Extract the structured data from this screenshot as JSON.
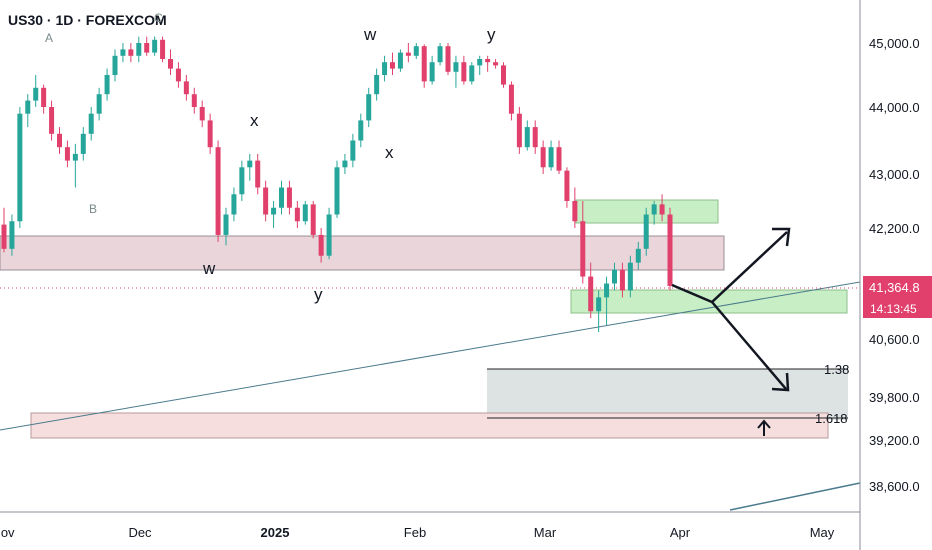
{
  "header": {
    "symbol_title": "US30 · 1D · FOREXCOM"
  },
  "chart_data": {
    "type": "candlestick",
    "instrument": "US30",
    "timeframe": "1D",
    "source": "FOREXCOM",
    "price_axis": {
      "ticks": [
        "45,000.0",
        "44,000.0",
        "43,000.0",
        "42,200.0",
        "40,600.0",
        "39,800.0",
        "39,200.0",
        "38,600.0"
      ],
      "tick_values": [
        45000,
        44000,
        43000,
        42200,
        40600,
        39800,
        39200,
        38600
      ],
      "current_price_label": "41,364.8",
      "countdown_label": "14:13:45",
      "current_price": 41364.8
    },
    "time_axis": {
      "ticks": [
        "Nov",
        "Dec",
        "2025",
        "Feb",
        "Mar",
        "Apr",
        "May"
      ]
    },
    "candles_ohlc": [
      [
        42250,
        42500,
        41850,
        41900
      ],
      [
        41900,
        42400,
        41800,
        42300
      ],
      [
        42300,
        44000,
        42200,
        43900
      ],
      [
        43900,
        44200,
        43700,
        44100
      ],
      [
        44100,
        44500,
        44000,
        44300
      ],
      [
        44300,
        44350,
        43900,
        44000
      ],
      [
        44000,
        44100,
        43500,
        43600
      ],
      [
        43600,
        43700,
        43300,
        43400
      ],
      [
        43400,
        43500,
        43100,
        43200
      ],
      [
        43200,
        43450,
        42800,
        43300
      ],
      [
        43300,
        43700,
        43200,
        43600
      ],
      [
        43600,
        44000,
        43500,
        43900
      ],
      [
        43900,
        44300,
        43800,
        44200
      ],
      [
        44200,
        44600,
        44100,
        44500
      ],
      [
        44500,
        44900,
        44400,
        44800
      ],
      [
        44800,
        45000,
        44700,
        44900
      ],
      [
        44900,
        45000,
        44700,
        44800
      ],
      [
        44800,
        45100,
        44700,
        45000
      ],
      [
        45000,
        45100,
        44800,
        44850
      ],
      [
        44850,
        45100,
        44800,
        45050
      ],
      [
        45050,
        45100,
        44700,
        44750
      ],
      [
        44750,
        44900,
        44500,
        44600
      ],
      [
        44600,
        44700,
        44300,
        44400
      ],
      [
        44400,
        44500,
        44100,
        44200
      ],
      [
        44200,
        44300,
        43900,
        44000
      ],
      [
        44000,
        44100,
        43700,
        43800
      ],
      [
        43800,
        43900,
        43300,
        43400
      ],
      [
        43400,
        43500,
        42000,
        42100
      ],
      [
        42100,
        42500,
        41950,
        42400
      ],
      [
        42400,
        42800,
        42300,
        42700
      ],
      [
        42700,
        43200,
        42600,
        43100
      ],
      [
        43100,
        43300,
        42900,
        43200
      ],
      [
        43200,
        43300,
        42700,
        42800
      ],
      [
        42800,
        42900,
        42300,
        42400
      ],
      [
        42400,
        42600,
        42200,
        42500
      ],
      [
        42500,
        42900,
        42400,
        42800
      ],
      [
        42800,
        42900,
        42400,
        42500
      ],
      [
        42500,
        42600,
        42200,
        42300
      ],
      [
        42300,
        42600,
        42250,
        42550
      ],
      [
        42550,
        42600,
        42050,
        42100
      ],
      [
        42100,
        42200,
        41700,
        41800
      ],
      [
        41800,
        42500,
        41750,
        42400
      ],
      [
        42400,
        43200,
        42350,
        43100
      ],
      [
        43100,
        43300,
        43000,
        43200
      ],
      [
        43200,
        43600,
        43100,
        43500
      ],
      [
        43500,
        43900,
        43400,
        43800
      ],
      [
        43800,
        44300,
        43700,
        44200
      ],
      [
        44200,
        44600,
        44100,
        44500
      ],
      [
        44500,
        44800,
        44400,
        44700
      ],
      [
        44700,
        44850,
        44500,
        44600
      ],
      [
        44600,
        44900,
        44550,
        44850
      ],
      [
        44850,
        45000,
        44700,
        44800
      ],
      [
        44800,
        45000,
        44750,
        44950
      ],
      [
        44950,
        44980,
        44300,
        44400
      ],
      [
        44400,
        44800,
        44350,
        44700
      ],
      [
        44700,
        45000,
        44650,
        44950
      ],
      [
        44950,
        45000,
        44500,
        44550
      ],
      [
        44550,
        44800,
        44300,
        44700
      ],
      [
        44700,
        44800,
        44350,
        44400
      ],
      [
        44400,
        44700,
        44350,
        44650
      ],
      [
        44650,
        44800,
        44500,
        44750
      ],
      [
        44750,
        44800,
        44550,
        44700
      ],
      [
        44700,
        44750,
        44600,
        44650
      ],
      [
        44650,
        44700,
        44300,
        44350
      ],
      [
        44350,
        44400,
        43800,
        43900
      ],
      [
        43900,
        44000,
        43300,
        43400
      ],
      [
        43400,
        43800,
        43350,
        43700
      ],
      [
        43700,
        43800,
        43300,
        43400
      ],
      [
        43400,
        43500,
        43000,
        43100
      ],
      [
        43100,
        43500,
        43050,
        43400
      ],
      [
        43400,
        43500,
        43000,
        43050
      ],
      [
        43050,
        43100,
        42500,
        42600
      ],
      [
        42600,
        42800,
        42200,
        42300
      ],
      [
        42300,
        42600,
        41400,
        41500
      ],
      [
        41500,
        41700,
        40900,
        41000
      ],
      [
        41000,
        41300,
        40700,
        41200
      ],
      [
        41200,
        41500,
        40800,
        41400
      ],
      [
        41400,
        41700,
        41300,
        41600
      ],
      [
        41600,
        41700,
        41200,
        41300
      ],
      [
        41300,
        41800,
        41200,
        41700
      ],
      [
        41700,
        42000,
        41600,
        41900
      ],
      [
        41900,
        42500,
        41800,
        42400
      ],
      [
        42400,
        42600,
        42250,
        42550
      ],
      [
        42550,
        42700,
        42300,
        42400
      ],
      [
        42400,
        42500,
        41300,
        41365
      ]
    ],
    "annotations": [
      "A",
      "B",
      "C",
      "w",
      "x",
      "y",
      "w",
      "x",
      "y"
    ],
    "fib_levels": [
      {
        "label": "1.38",
        "value": 40000
      },
      {
        "label": "1.618",
        "value": 39300
      }
    ],
    "zones": [
      {
        "kind": "supply-demand",
        "color": "pink",
        "from": 41800,
        "to": 42200
      },
      {
        "kind": "demand",
        "color": "green",
        "from": 40900,
        "to": 41200
      },
      {
        "kind": "supply",
        "color": "green",
        "from": 42350,
        "to": 42650
      },
      {
        "kind": "target",
        "color": "gray",
        "from": 39400,
        "to": 40000
      },
      {
        "kind": "target",
        "color": "pink",
        "from": 39300,
        "to": 39650
      }
    ],
    "grid": false,
    "colors": {
      "bull": "#26a69a",
      "bear": "#e0406b",
      "zone_pink": "#ead6da",
      "zone_green": "#c7eec4",
      "zone_gray": "#dde3e3",
      "price_tag": "#e0406b",
      "trend_line": "#4a7a8c"
    }
  }
}
